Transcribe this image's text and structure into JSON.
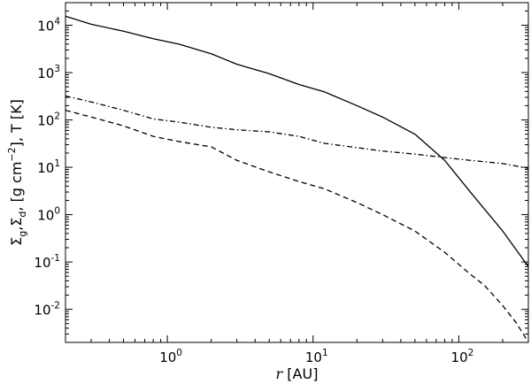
{
  "chart_data": {
    "type": "line",
    "xscale": "log",
    "yscale": "log",
    "xlim": [
      0.2,
      300
    ],
    "ylim": [
      0.002,
      30000
    ],
    "grid": false,
    "xlabel_parts": {
      "var": "r",
      "unit": " [AU]"
    },
    "ylabel_parts": {
      "sigma": "Σ",
      "sub_g": "g",
      "sub_d": "d",
      "comma": ",",
      "bracket_open": " [g cm",
      "exp": "−2",
      "bracket_close": "], T [K]"
    },
    "xticks": [
      {
        "value": 1,
        "base": "10",
        "exp": "0"
      },
      {
        "value": 10,
        "base": "10",
        "exp": "1"
      },
      {
        "value": 100,
        "base": "10",
        "exp": "2"
      }
    ],
    "yticks": [
      {
        "value": 0.01,
        "base": "10",
        "exp": "-2"
      },
      {
        "value": 0.1,
        "base": "10",
        "exp": "-1"
      },
      {
        "value": 1,
        "base": "10",
        "exp": "0"
      },
      {
        "value": 10,
        "base": "10",
        "exp": "1"
      },
      {
        "value": 100,
        "base": "10",
        "exp": "2"
      },
      {
        "value": 1000,
        "base": "10",
        "exp": "3"
      },
      {
        "value": 10000,
        "base": "10",
        "exp": "4"
      }
    ],
    "series": [
      {
        "style": "solid",
        "x": [
          0.2,
          0.3,
          0.5,
          0.8,
          1.2,
          2,
          3,
          5,
          8,
          12,
          20,
          30,
          50,
          80,
          120,
          200,
          300
        ],
        "y": [
          15500,
          10500,
          7500,
          5200,
          4000,
          2500,
          1500,
          950,
          560,
          390,
          200,
          115,
          50,
          14,
          3.0,
          0.45,
          0.08
        ]
      },
      {
        "style": "dashdot",
        "x": [
          0.2,
          0.3,
          0.5,
          0.8,
          1.2,
          2,
          3,
          5,
          8,
          12,
          20,
          30,
          50,
          80,
          120,
          200,
          300
        ],
        "y": [
          320,
          240,
          160,
          105,
          90,
          70,
          62,
          56,
          45,
          32,
          26,
          22,
          19,
          16,
          14,
          12,
          9.5
        ]
      },
      {
        "style": "dashed",
        "x": [
          0.2,
          0.3,
          0.5,
          0.8,
          1.2,
          2,
          3,
          5,
          8,
          12,
          20,
          30,
          50,
          80,
          120,
          150,
          200,
          250,
          300
        ],
        "y": [
          160,
          115,
          75,
          45,
          35,
          27,
          14,
          8,
          5,
          3.5,
          1.8,
          1.0,
          0.45,
          0.16,
          0.055,
          0.032,
          0.012,
          0.005,
          0.002
        ]
      }
    ]
  }
}
